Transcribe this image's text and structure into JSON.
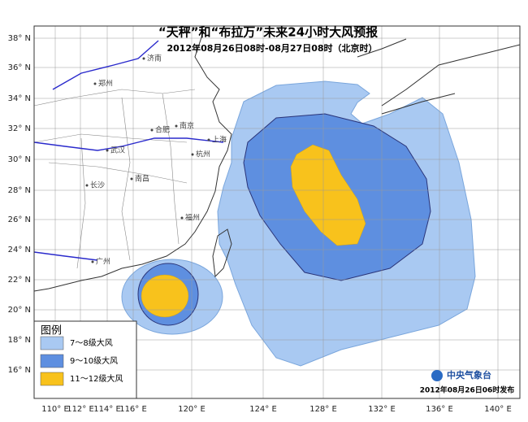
{
  "title": "“天秤”和“布拉万”未来24小时大风预报",
  "subtitle": "2012年08月26日08时-08月27日08时（北京时）",
  "lat_labels": [
    "38° N",
    "36° N",
    "34° N",
    "32° N",
    "30° N",
    "28° N",
    "26° N",
    "24° N",
    "22° N",
    "20° N",
    "18° N",
    "16° N"
  ],
  "lon_labels": [
    "110° E",
    "112° E",
    "114° E",
    "116° E",
    "120° E",
    "124° E",
    "128° E",
    "132° E",
    "136° E",
    "140° E"
  ],
  "cities": [
    "济南",
    "郑州",
    "合肥",
    "南京",
    "上海",
    "武汉",
    "杭州",
    "长沙",
    "南昌",
    "福州",
    "广州"
  ],
  "legend": {
    "title": "图例",
    "items": [
      {
        "label": "7～8级大风",
        "color": "#a9c9f2"
      },
      {
        "label": "9～10级大风",
        "color": "#5e8fe0"
      },
      {
        "label": "11～12级大风",
        "color": "#f8c21c"
      }
    ]
  },
  "logo": "中央气象台",
  "issued": "2012年08月26日06时发布"
}
